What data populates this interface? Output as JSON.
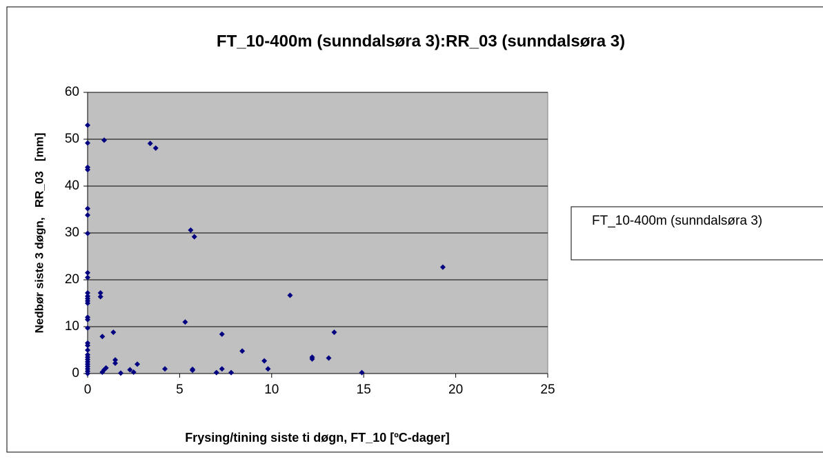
{
  "chart_data": {
    "type": "scatter",
    "title": "FT_10-400m (sunndalsøra 3):RR_03 (sunndalsøra 3)",
    "x_label": "Frysing/tining siste ti døgn, FT_10 [ºC-dager]",
    "y_label": "Nedbør siste 3 døgn,   RR_03   [mm]",
    "x": [
      0,
      0,
      0,
      0,
      0,
      0,
      0,
      0,
      0,
      0,
      0,
      0,
      0,
      0,
      0,
      0,
      0,
      0,
      0,
      0,
      0,
      0,
      0,
      0,
      0,
      0,
      0,
      0,
      0,
      0.9,
      3.4,
      3.7,
      5.6,
      5.8,
      19.3,
      0.7,
      0.7,
      11,
      5.3,
      0.8,
      1.4,
      7.3,
      13.4,
      8.4,
      12.2,
      12.2,
      13.1,
      9.6,
      9.8,
      1.5,
      1.5,
      2.7,
      1,
      0.9,
      0.8,
      1.8,
      2.3,
      2.5,
      4.2,
      5.7,
      5.7,
      7,
      7.3,
      7.8,
      14.9
    ],
    "series": [
      {
        "name": "FT_10-400m (sunndalsøra 3)",
        "color": "#000080",
        "values": [
          53,
          49.2,
          44,
          43.5,
          35.2,
          33.8,
          29.9,
          21.5,
          20.5,
          17.2,
          16.5,
          16,
          15.5,
          15,
          12,
          11.5,
          9.7,
          6.5,
          6,
          5,
          4,
          3.5,
          3,
          2.5,
          2,
          1.5,
          1,
          0.5,
          0,
          49.8,
          49.1,
          48.1,
          30.6,
          29.2,
          22.7,
          17.2,
          16.4,
          16.7,
          11,
          7.9,
          8.8,
          8.4,
          8.8,
          4.8,
          3.5,
          3.1,
          3.3,
          2.7,
          1,
          2.9,
          2.2,
          2,
          1.2,
          0.8,
          0.3,
          0.1,
          0.8,
          0.3,
          1,
          0.9,
          0.7,
          0.2,
          1,
          0.2,
          0.2
        ]
      }
    ],
    "xlim": [
      0,
      25
    ],
    "xticks": [
      0,
      5,
      10,
      15,
      20,
      25
    ],
    "ylim": [
      0,
      60
    ],
    "yticks": [
      0,
      10,
      20,
      30,
      40,
      50,
      60
    ],
    "grid": true,
    "legend": "right",
    "plot_background": "#c0c0c0"
  }
}
